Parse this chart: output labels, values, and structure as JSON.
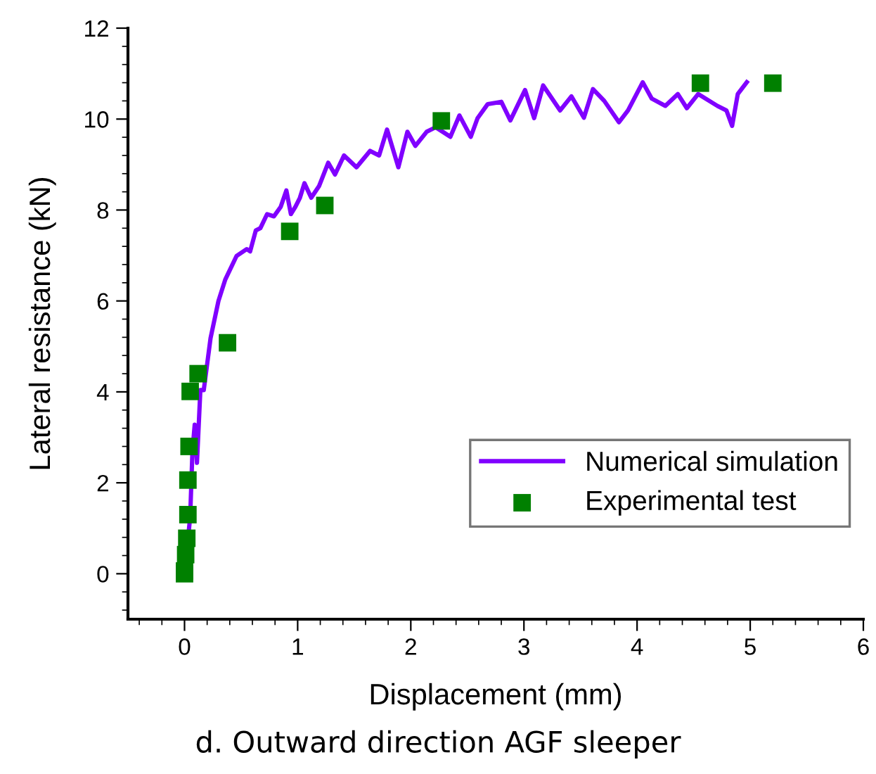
{
  "chart_data": {
    "type": "line",
    "xlabel": "Displacement (mm)",
    "ylabel": "Lateral resistance (kN)",
    "annotations": [
      "d. Outward direction AGF sleeper"
    ],
    "xlim": [
      -0.5,
      6
    ],
    "xticks": [
      0,
      1,
      2,
      3,
      4,
      5,
      6
    ],
    "ylim": [
      -1,
      12
    ],
    "yticks": [
      0,
      2,
      4,
      6,
      8,
      10,
      12
    ],
    "grid": false,
    "legend": "right",
    "series": [
      {
        "name": "Numerical simulation",
        "color": "#8000ff",
        "marker": "none",
        "line_style": "solid",
        "x": [
          0.0,
          0.05,
          0.07,
          0.09,
          0.11,
          0.14,
          0.17,
          0.23,
          0.3,
          0.36,
          0.46,
          0.55,
          0.58,
          0.63,
          0.67,
          0.73,
          0.79,
          0.85,
          0.9,
          0.94,
          0.98,
          1.02,
          1.06,
          1.12,
          1.19,
          1.27,
          1.33,
          1.41,
          1.52,
          1.64,
          1.72,
          1.79,
          1.89,
          1.97,
          2.04,
          2.14,
          2.22,
          2.35,
          2.43,
          2.53,
          2.59,
          2.68,
          2.8,
          2.88,
          3.01,
          3.09,
          3.17,
          3.32,
          3.42,
          3.53,
          3.61,
          3.71,
          3.84,
          3.92,
          4.05,
          4.13,
          4.25,
          4.36,
          4.44,
          4.54,
          4.71,
          4.79,
          4.84,
          4.89,
          4.97
        ],
        "values": [
          0.0,
          1.25,
          2.7,
          3.28,
          2.44,
          4.04,
          4.04,
          5.18,
          6.0,
          6.47,
          6.99,
          7.14,
          7.09,
          7.55,
          7.6,
          7.91,
          7.86,
          8.07,
          8.43,
          7.91,
          8.07,
          8.27,
          8.59,
          8.27,
          8.53,
          9.04,
          8.78,
          9.2,
          8.94,
          9.3,
          9.2,
          9.77,
          8.94,
          9.72,
          9.41,
          9.72,
          9.82,
          9.61,
          10.08,
          9.61,
          10.02,
          10.33,
          10.38,
          9.97,
          10.64,
          10.02,
          10.74,
          10.19,
          10.5,
          10.03,
          10.66,
          10.4,
          9.93,
          10.19,
          10.81,
          10.45,
          10.29,
          10.55,
          10.24,
          10.55,
          10.29,
          10.19,
          9.85,
          10.55,
          10.81
        ]
      },
      {
        "name": "Experimental test",
        "type": "scatter",
        "color": "#008000",
        "marker": "square",
        "x": [
          0.0,
          0.0,
          0.01,
          0.02,
          0.03,
          0.03,
          0.04,
          0.05,
          0.12,
          0.38,
          0.93,
          1.24,
          2.27,
          4.56,
          5.2
        ],
        "values": [
          0.0,
          0.06,
          0.42,
          0.78,
          1.3,
          2.06,
          2.8,
          4.01,
          4.4,
          5.08,
          7.53,
          8.1,
          9.96,
          10.79,
          10.79
        ]
      }
    ]
  }
}
